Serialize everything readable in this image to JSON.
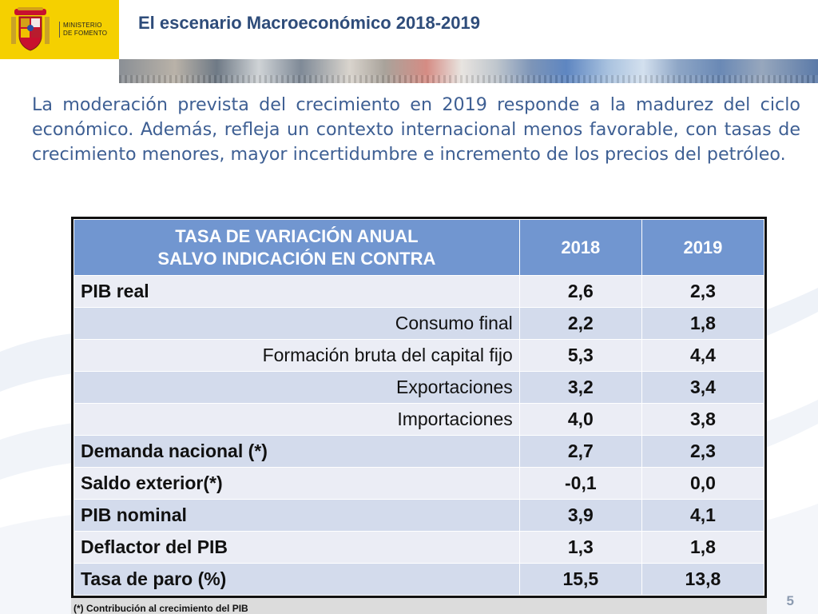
{
  "header": {
    "ministry_line1": "MINISTERIO",
    "ministry_line2": "DE FOMENTO",
    "title": "El escenario Macroeconómico 2018-2019"
  },
  "intro": "La moderación prevista del crecimiento en 2019 responde a la madurez del ciclo económico. Además, refleja un contexto internacional menos favorable, con tasas de crecimiento menores, mayor incertidumbre e incremento de los precios del petróleo.",
  "table": {
    "header_line1": "TASA DE VARIACIÓN ANUAL",
    "header_line2": "SALVO INDICACIÓN EN CONTRA",
    "year1": "2018",
    "year2": "2019",
    "rows": [
      {
        "label": "PIB real",
        "v2018": "2,6",
        "v2019": "2,3"
      },
      {
        "label": "Consumo final",
        "v2018": "2,2",
        "v2019": "1,8"
      },
      {
        "label": "Formación bruta del capital fijo",
        "v2018": "5,3",
        "v2019": "4,4"
      },
      {
        "label": "Exportaciones",
        "v2018": "3,2",
        "v2019": "3,4"
      },
      {
        "label": "Importaciones",
        "v2018": "4,0",
        "v2019": "3,8"
      },
      {
        "label": "Demanda nacional (*)",
        "v2018": "2,7",
        "v2019": "2,3"
      },
      {
        "label": "Saldo exterior(*)",
        "v2018": "-0,1",
        "v2019": "0,0"
      },
      {
        "label": "PIB nominal",
        "v2018": "3,9",
        "v2019": "4,1"
      },
      {
        "label": "Deflactor del PIB",
        "v2018": "1,3",
        "v2019": "1,8"
      },
      {
        "label": "Tasa de paro (%)",
        "v2018": "15,5",
        "v2019": "13,8"
      }
    ]
  },
  "footnote": "(*) Contribución al crecimiento del PIB",
  "page_number": "5",
  "colors": {
    "logo_bg": "#f5d000",
    "title": "#2e4c7a",
    "intro_text": "#3e5f93",
    "table_header": "#7196d0",
    "row_light": "#ebedf5",
    "row_dark": "#d3dbec"
  }
}
